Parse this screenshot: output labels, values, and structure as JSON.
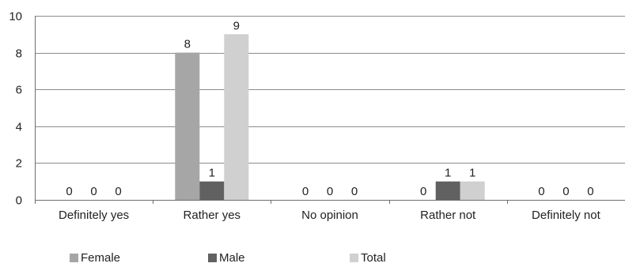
{
  "chart_data": {
    "type": "bar",
    "title": "",
    "xlabel": "",
    "ylabel": "",
    "ylim": [
      0,
      10
    ],
    "yticks": [
      0,
      2,
      4,
      6,
      8,
      10
    ],
    "grid": true,
    "legend_position": "bottom-left",
    "categories": [
      "Definitely yes",
      "Rather yes",
      "No opinion",
      "Rather not",
      "Definitely not"
    ],
    "series": [
      {
        "name": "Female",
        "color": "#a6a6a6",
        "values": [
          0,
          8,
          0,
          0,
          0
        ]
      },
      {
        "name": "Male",
        "color": "#616161",
        "values": [
          0,
          1,
          0,
          1,
          0
        ]
      },
      {
        "name": "Total",
        "color": "#d0d0d0",
        "values": [
          0,
          9,
          0,
          1,
          0
        ]
      }
    ]
  }
}
